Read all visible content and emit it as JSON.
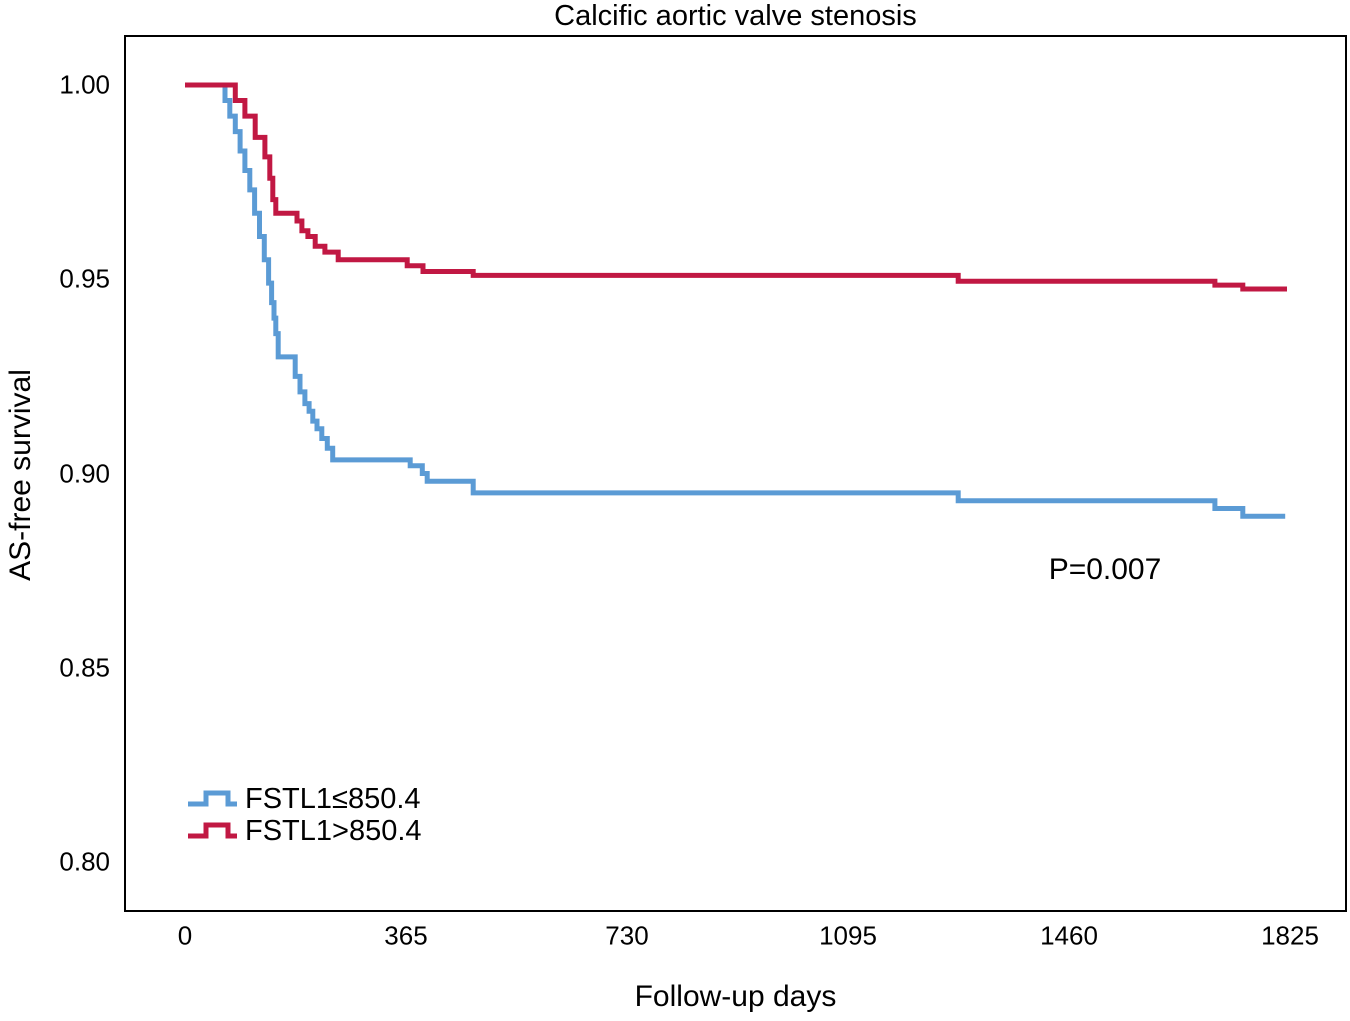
{
  "chart_data": {
    "type": "line",
    "chart_style": "kaplan-meier-step",
    "title": "Calcific aortic valve stenosis",
    "xlabel": "Follow-up days",
    "ylabel": "AS-free survival",
    "xlim": [
      0,
      1825
    ],
    "ylim": [
      0.8,
      1.0
    ],
    "x_ticks": [
      0,
      365,
      730,
      1095,
      1460,
      1825
    ],
    "y_ticks": [
      "1.00",
      "0.95",
      "0.90",
      "0.85",
      "0.80"
    ],
    "grid": false,
    "legend_position": "lower-left",
    "annotation": {
      "text": "P=0.007",
      "x_day": 1519,
      "y_value": 0.875
    },
    "series": [
      {
        "name": "FSTL1≤850.4",
        "color": "#5B9BD5",
        "end_day": 1817,
        "points": [
          [
            0,
            1.0
          ],
          [
            66,
            0.996
          ],
          [
            74,
            0.992
          ],
          [
            83,
            0.988
          ],
          [
            91,
            0.983
          ],
          [
            99,
            0.978
          ],
          [
            107,
            0.973
          ],
          [
            115,
            0.967
          ],
          [
            123,
            0.961
          ],
          [
            131,
            0.955
          ],
          [
            138,
            0.949
          ],
          [
            143,
            0.944
          ],
          [
            147,
            0.94
          ],
          [
            150,
            0.936
          ],
          [
            154,
            0.93
          ],
          [
            182,
            0.925
          ],
          [
            190,
            0.921
          ],
          [
            198,
            0.918
          ],
          [
            205,
            0.916
          ],
          [
            211,
            0.9135
          ],
          [
            218,
            0.9115
          ],
          [
            226,
            0.909
          ],
          [
            235,
            0.9065
          ],
          [
            244,
            0.9035
          ],
          [
            372,
            0.902
          ],
          [
            392,
            0.9
          ],
          [
            400,
            0.898
          ],
          [
            476,
            0.895
          ],
          [
            1277,
            0.893
          ],
          [
            1701,
            0.891
          ],
          [
            1747,
            0.889
          ]
        ]
      },
      {
        "name": "FSTL1>850.4",
        "color": "#C11843",
        "end_day": 1820,
        "points": [
          [
            0,
            1.0
          ],
          [
            83,
            0.996
          ],
          [
            99,
            0.992
          ],
          [
            116,
            0.9865
          ],
          [
            132,
            0.9815
          ],
          [
            140,
            0.976
          ],
          [
            145,
            0.9705
          ],
          [
            150,
            0.967
          ],
          [
            185,
            0.965
          ],
          [
            193,
            0.9625
          ],
          [
            203,
            0.961
          ],
          [
            215,
            0.9585
          ],
          [
            231,
            0.957
          ],
          [
            253,
            0.955
          ],
          [
            367,
            0.9535
          ],
          [
            393,
            0.952
          ],
          [
            476,
            0.951
          ],
          [
            1277,
            0.9495
          ],
          [
            1701,
            0.9485
          ],
          [
            1747,
            0.9475
          ]
        ]
      }
    ]
  }
}
